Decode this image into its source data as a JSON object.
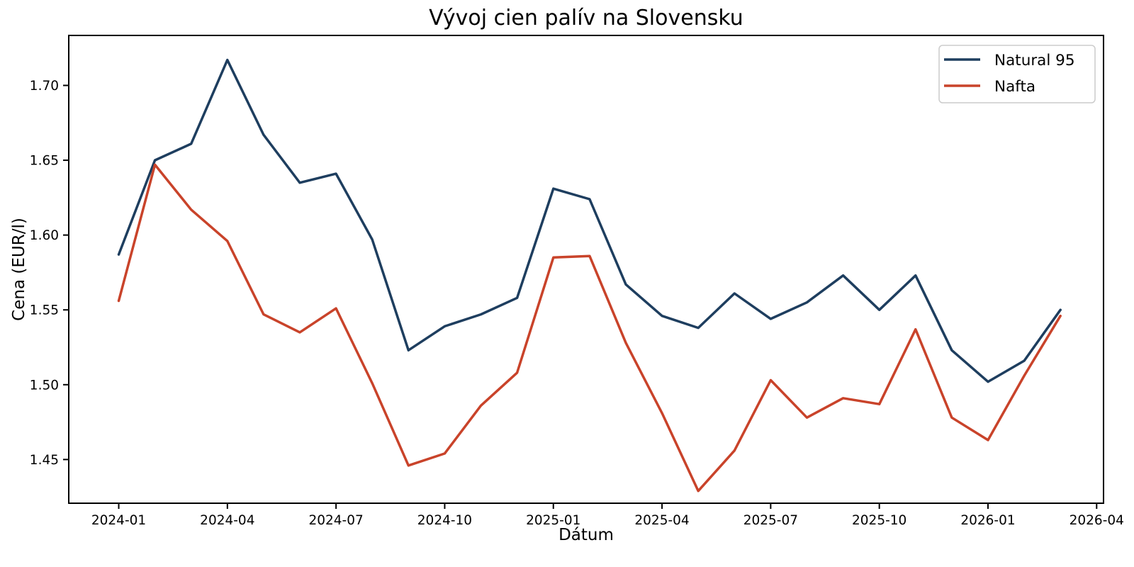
{
  "figure": {
    "background": "#ffffff",
    "spine_color": "#000000",
    "tick_color": "#000000",
    "legend_frame_color": "#cccccc"
  },
  "chart_data": {
    "type": "line",
    "title": "Vývoj cien palív na Slovensku",
    "xlabel": "Dátum",
    "ylabel": "Cena (EUR/l)",
    "grid": false,
    "legend": {
      "position": "upper right",
      "entries": [
        "Natural 95",
        "Nafta"
      ]
    },
    "x": [
      "2024-01",
      "2024-02",
      "2024-03",
      "2024-04",
      "2024-05",
      "2024-06",
      "2024-07",
      "2024-08",
      "2024-09",
      "2024-10",
      "2024-11",
      "2024-12",
      "2025-01",
      "2025-02",
      "2025-03",
      "2025-04",
      "2025-05",
      "2025-06",
      "2025-07",
      "2025-08",
      "2025-09",
      "2025-10",
      "2025-11",
      "2025-12",
      "2026-01",
      "2026-02",
      "2026-03"
    ],
    "series": [
      {
        "name": "Natural 95",
        "color": "#1e3e5f",
        "values": [
          1.587,
          1.65,
          1.661,
          1.717,
          1.667,
          1.635,
          1.641,
          1.597,
          1.523,
          1.539,
          1.547,
          1.558,
          1.631,
          1.624,
          1.567,
          1.546,
          1.538,
          1.561,
          1.544,
          1.555,
          1.573,
          1.55,
          1.573,
          1.523,
          1.502,
          1.516,
          1.55
        ]
      },
      {
        "name": "Nafta",
        "color": "#c9432a",
        "values": [
          1.556,
          1.647,
          1.617,
          1.596,
          1.547,
          1.535,
          1.551,
          1.501,
          1.446,
          1.454,
          1.486,
          1.508,
          1.585,
          1.586,
          1.528,
          1.481,
          1.429,
          1.456,
          1.503,
          1.478,
          1.491,
          1.487,
          1.537,
          1.478,
          1.463,
          1.506,
          1.546
        ]
      }
    ],
    "x_tick_labels": [
      "2024-01",
      "2024-04",
      "2024-07",
      "2024-10",
      "2025-01",
      "2025-04",
      "2025-07",
      "2025-10",
      "2026-01",
      "2026-04"
    ],
    "x_tick_month_index": [
      0,
      3,
      6,
      9,
      12,
      15,
      18,
      21,
      24,
      27
    ],
    "y_tick_labels": [
      "1.45",
      "1.50",
      "1.55",
      "1.60",
      "1.65",
      "1.70"
    ],
    "y_tick_values": [
      1.45,
      1.5,
      1.55,
      1.6,
      1.65,
      1.7
    ],
    "xlim_month_index": [
      -1.38,
      27.19
    ],
    "ylim": [
      1.4208,
      1.7334
    ]
  }
}
